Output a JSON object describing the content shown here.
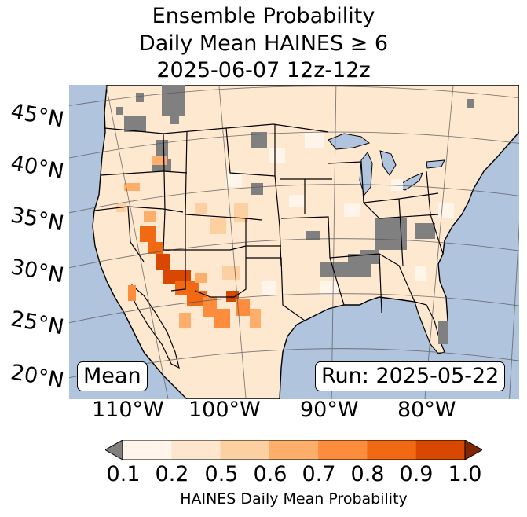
{
  "title": {
    "line1": "Ensemble Probability",
    "line2": "Daily Mean HAINES ≥ 6",
    "line3": "2025-06-07 12z-12z"
  },
  "map": {
    "latitude_labels": [
      "45°N",
      "40°N",
      "35°N",
      "30°N",
      "25°N",
      "20°N"
    ],
    "longitude_labels": [
      "110°W",
      "100°W",
      "90°W",
      "80°W"
    ],
    "ocean_color": "#b0c4de",
    "land_background_color": "#ffe8d0",
    "missing_color": "#808080",
    "left_box": "Mean",
    "right_box": "Run: 2025-05-22"
  },
  "colorbar": {
    "ticks": [
      "0.1",
      "0.2",
      "0.5",
      "0.6",
      "0.7",
      "0.8",
      "0.9",
      "1.0"
    ],
    "colors": [
      "#fff5eb",
      "#fee6ce",
      "#fdd0a2",
      "#fdae6b",
      "#fd8d3c",
      "#f16913",
      "#d94801",
      "#a63603"
    ],
    "under_color": "#808080",
    "over_color": "#7f2704",
    "label": "HAINES Daily Mean Probability"
  }
}
